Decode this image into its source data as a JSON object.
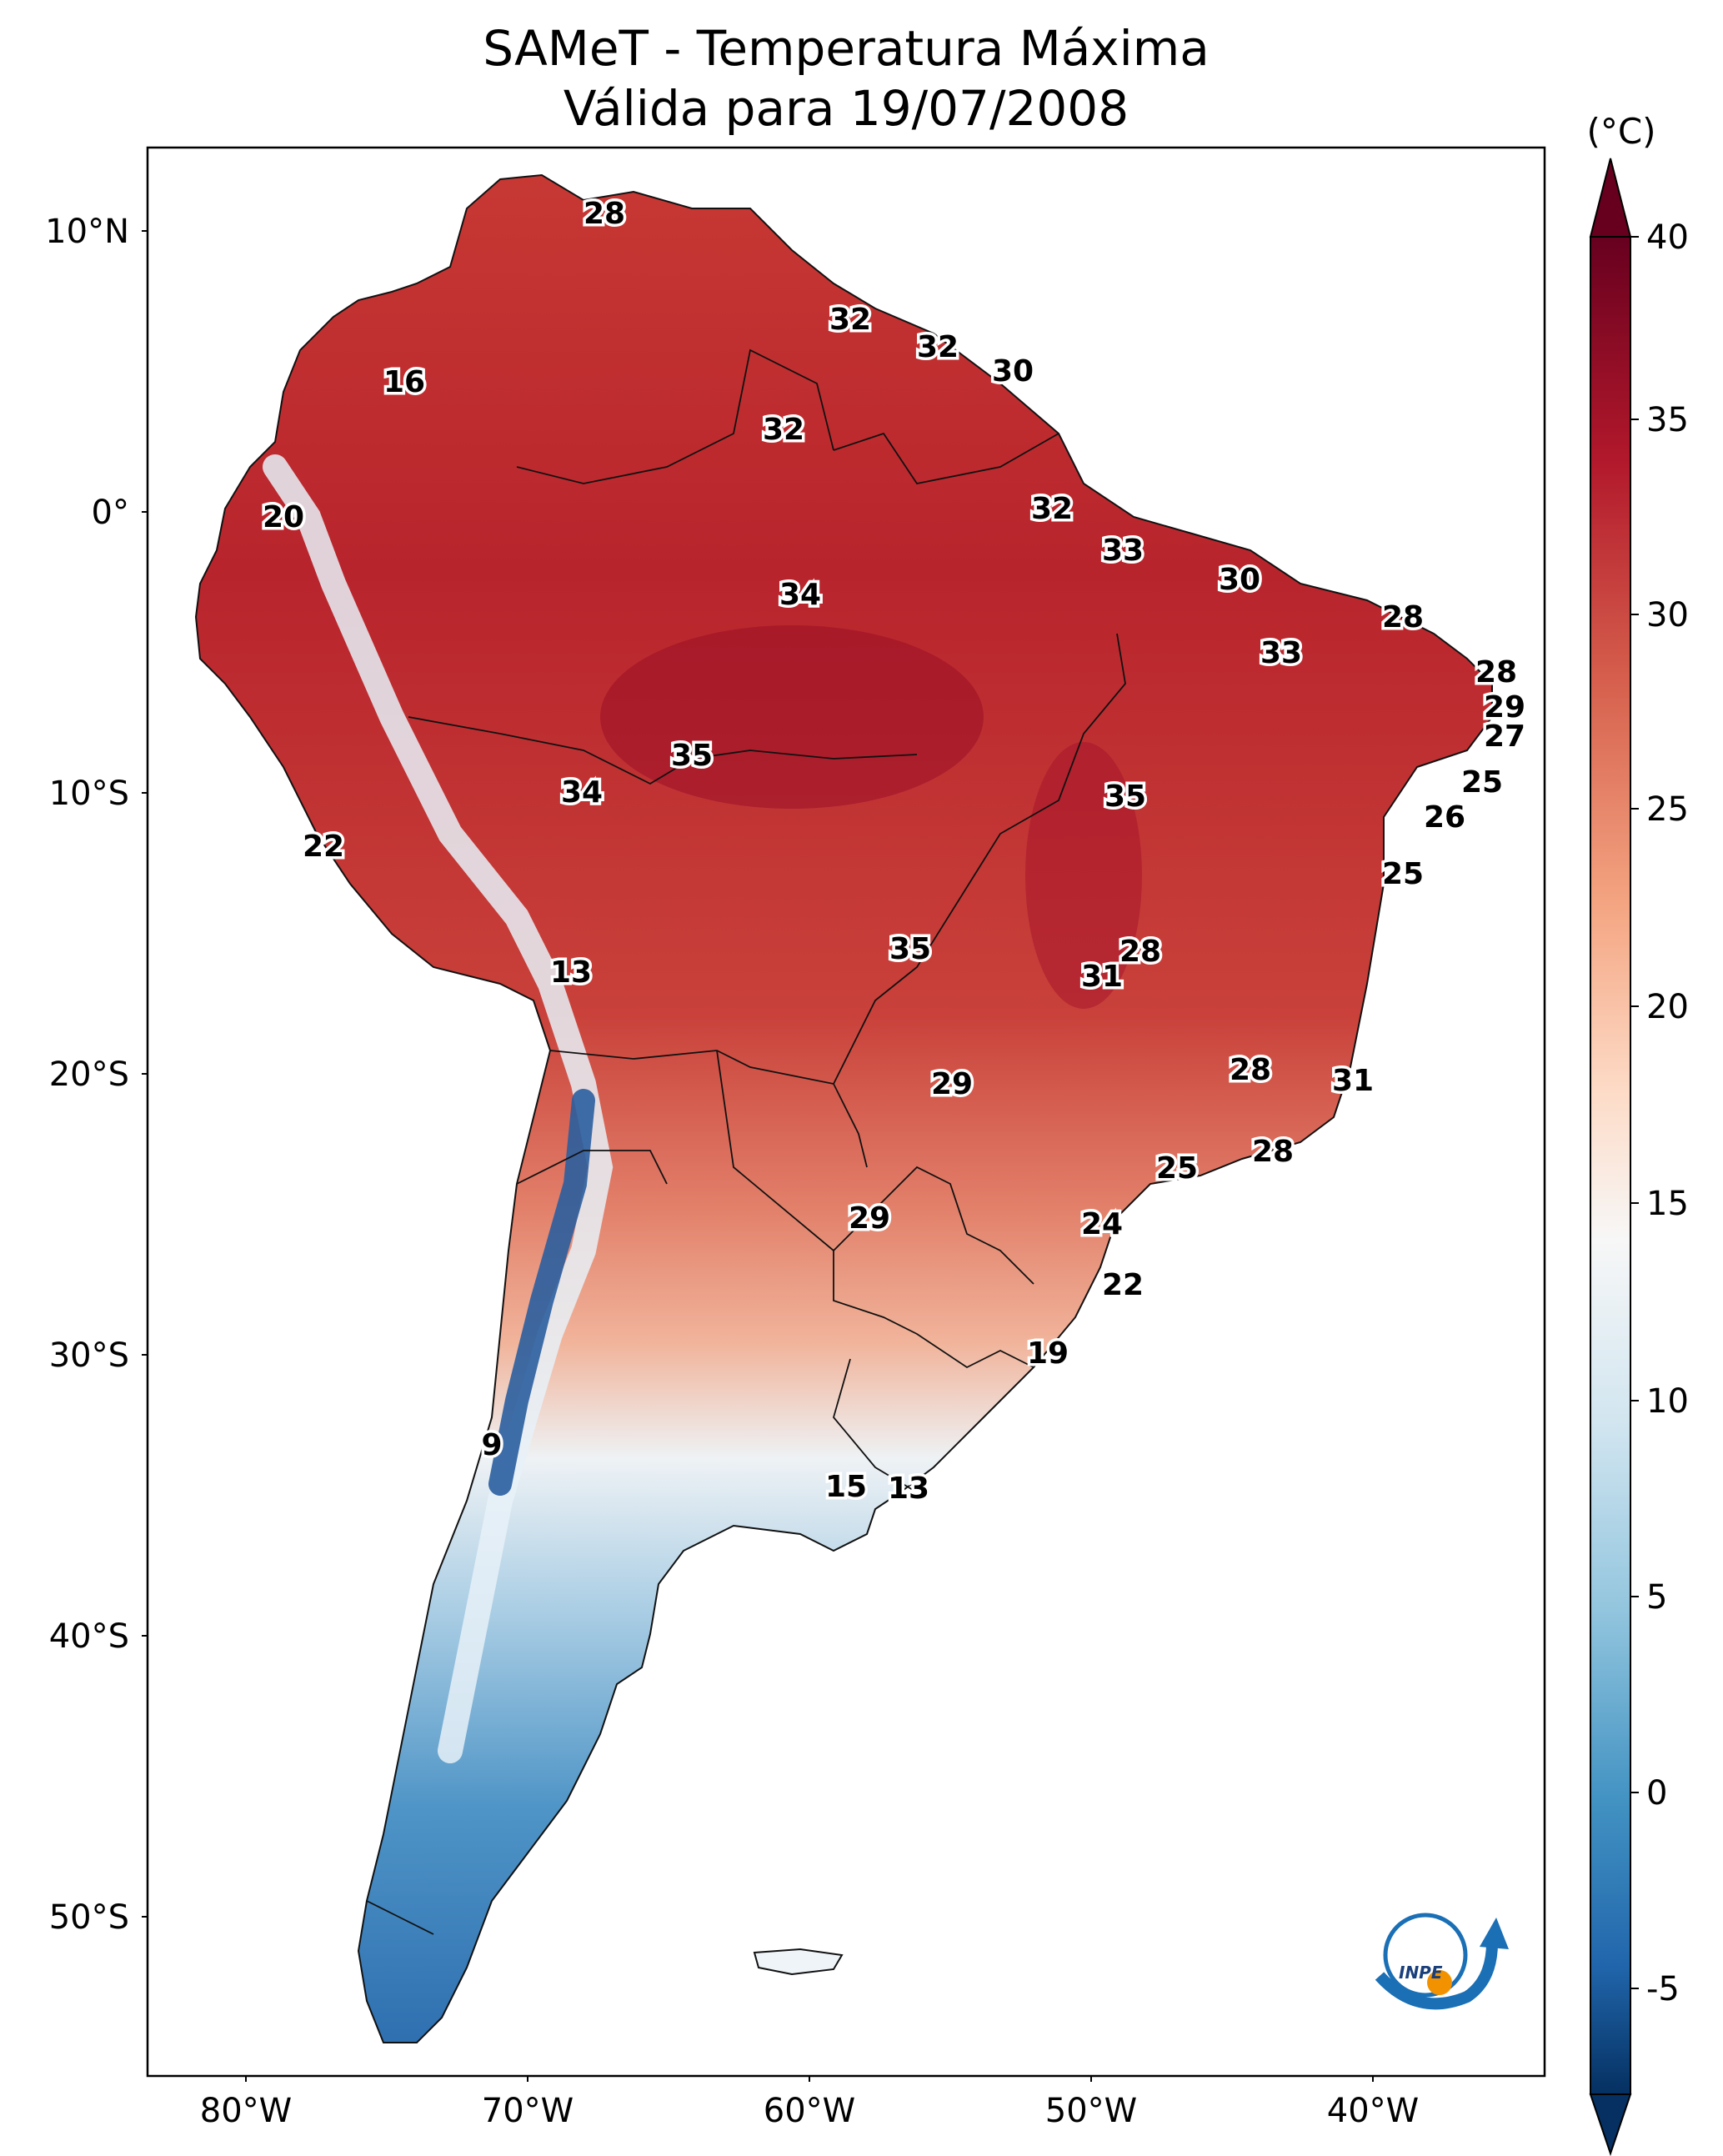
{
  "title_line1": "SAMeT - Temperatura Máxima",
  "title_line2": "Válida para 19/07/2008",
  "colorbar": {
    "unit": "(°C)",
    "ticks": [
      "40",
      "35",
      "30",
      "25",
      "20",
      "15",
      "10",
      "5",
      "0",
      "-5"
    ],
    "colors": [
      "#67001f",
      "#b2182b",
      "#d6604d",
      "#f4a582",
      "#fddbc7",
      "#f7f7f7",
      "#d1e5f0",
      "#92c5de",
      "#4393c3",
      "#2166ac",
      "#053061"
    ]
  },
  "axes": {
    "lat_labels": [
      "10°N",
      "0°",
      "10°S",
      "20°S",
      "30°S",
      "40°S",
      "50°S"
    ],
    "lon_labels": [
      "80°W",
      "70°W",
      "60°W",
      "50°W",
      "40°W"
    ]
  },
  "station_values": [
    "28",
    "16",
    "32",
    "32",
    "30",
    "32",
    "20",
    "32",
    "33",
    "34",
    "30",
    "28",
    "33",
    "28",
    "29",
    "27",
    "35",
    "25",
    "34",
    "35",
    "26",
    "22",
    "25",
    "35",
    "28",
    "13",
    "31",
    "20",
    "28",
    "31",
    "29",
    "25",
    "28",
    "24",
    "29",
    "22",
    "19",
    "9",
    "15",
    "13"
  ],
  "logo": {
    "text": "INPE"
  }
}
